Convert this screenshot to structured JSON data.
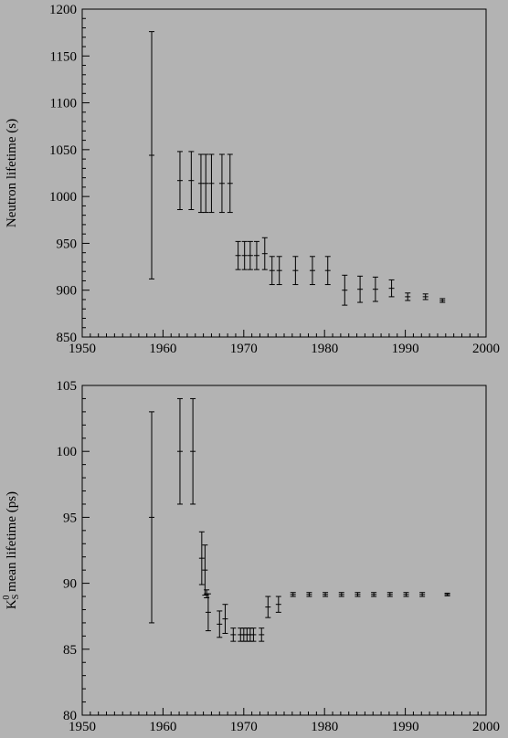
{
  "chart_data": [
    {
      "type": "errorbar",
      "y_label": {
        "base": "Neutron lifetime (s)"
      },
      "xlim": [
        1950,
        2000
      ],
      "xticks": [
        1950,
        1960,
        1970,
        1980,
        1990,
        2000
      ],
      "ylim": [
        850,
        1200
      ],
      "yticks": [
        850,
        900,
        950,
        1000,
        1050,
        1100,
        1150,
        1200
      ],
      "color": "#000000",
      "x": [
        1958.6,
        1962.1,
        1963.5,
        1964.7,
        1965.3,
        1966.0,
        1967.3,
        1968.3,
        1969.3,
        1970.1,
        1970.8,
        1971.6,
        1972.6,
        1973.5,
        1974.4,
        1976.4,
        1978.5,
        1980.4,
        1982.5,
        1984.4,
        1986.3,
        1988.3,
        1990.3,
        1992.5,
        1994.6
      ],
      "values": [
        1044,
        1017,
        1017,
        1014,
        1014,
        1014,
        1014,
        1014,
        937,
        937,
        937,
        937,
        939,
        921,
        921,
        921,
        921,
        921,
        900,
        901,
        901,
        902,
        893,
        893,
        889
      ],
      "errors": [
        132,
        31,
        31,
        31,
        31,
        31,
        31,
        31,
        15,
        15,
        15,
        15,
        17,
        15,
        15,
        15,
        15,
        15,
        16,
        14,
        13,
        9,
        4,
        3,
        2
      ]
    },
    {
      "type": "errorbar",
      "y_label": {
        "base": "K",
        "sub": "S",
        "sup": "0",
        "rest": " mean lifetime (ps)"
      },
      "xlim": [
        1950,
        2000
      ],
      "xticks": [
        1950,
        1960,
        1970,
        1980,
        1990,
        2000
      ],
      "ylim": [
        80,
        105
      ],
      "yticks": [
        80,
        85,
        90,
        95,
        100,
        105
      ],
      "color": "#000000",
      "x": [
        1958.6,
        1962.1,
        1963.7,
        1964.8,
        1965.2,
        1965.4,
        1965.6,
        1967.0,
        1967.7,
        1968.7,
        1969.6,
        1970.0,
        1970.4,
        1970.8,
        1971.2,
        1972.2,
        1973.0,
        1974.3,
        1976.1,
        1978.1,
        1980.1,
        1982.1,
        1984.1,
        1986.1,
        1988.1,
        1990.1,
        1992.1,
        1995.2
      ],
      "values": [
        95,
        100,
        100,
        91.9,
        91.0,
        89.2,
        87.8,
        86.9,
        87.3,
        86.1,
        86.1,
        86.1,
        86.1,
        86.1,
        86.1,
        86.1,
        88.2,
        88.4,
        89.15,
        89.15,
        89.15,
        89.15,
        89.15,
        89.15,
        89.15,
        89.15,
        89.15,
        89.15
      ],
      "errors": [
        8,
        4,
        4,
        2,
        1.9,
        0.3,
        1.4,
        1.0,
        1.1,
        0.5,
        0.5,
        0.5,
        0.5,
        0.5,
        0.5,
        0.5,
        0.8,
        0.6,
        0.15,
        0.15,
        0.15,
        0.15,
        0.15,
        0.15,
        0.15,
        0.15,
        0.15,
        0.1
      ]
    }
  ]
}
